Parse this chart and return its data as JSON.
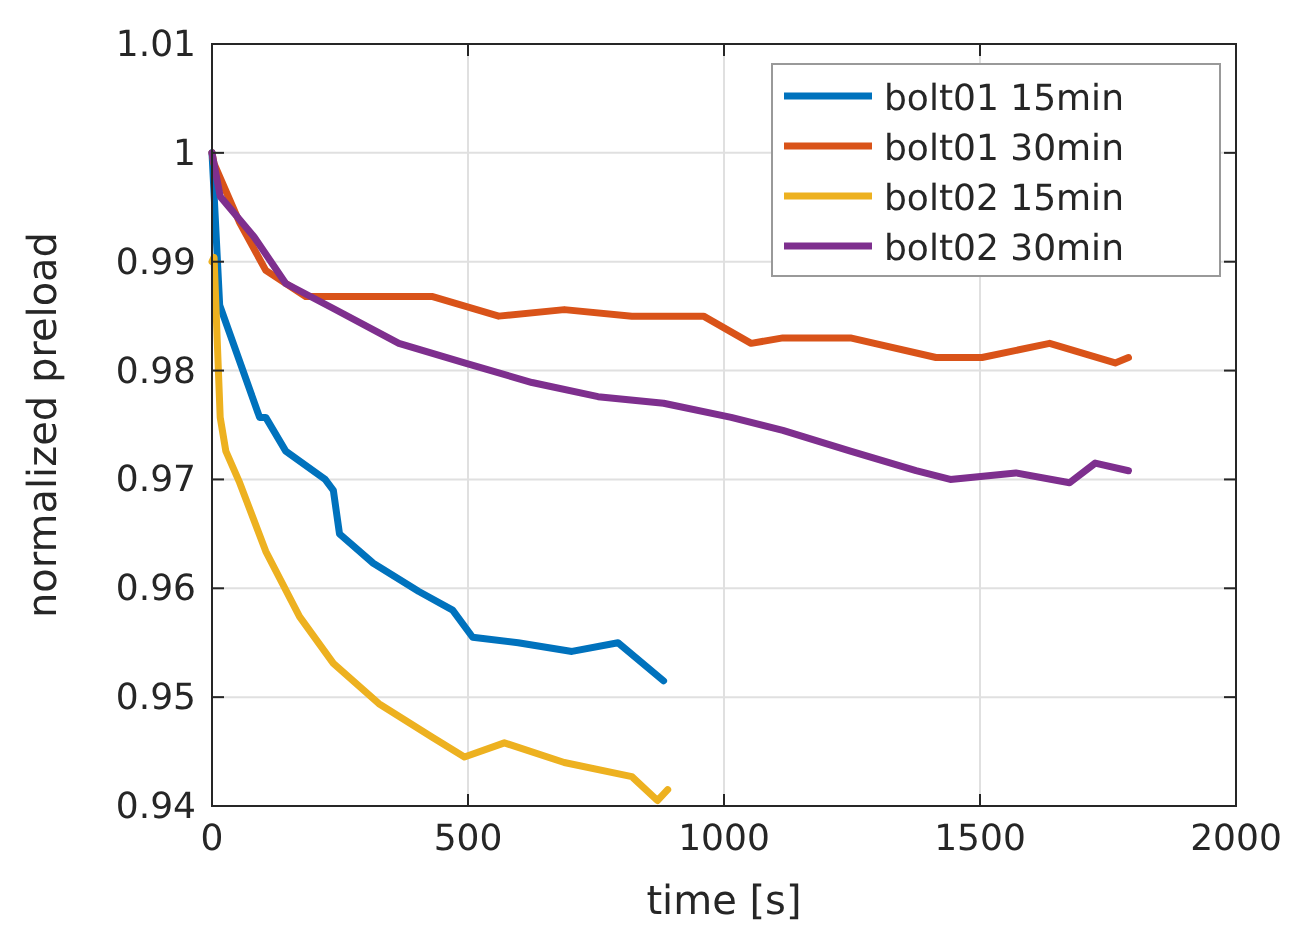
{
  "chart_data": {
    "type": "line",
    "xlabel": "time [s]",
    "ylabel": "normalized preload",
    "xlim": [
      0,
      2000
    ],
    "ylim": [
      0.94,
      1.01
    ],
    "xticks": [
      0,
      500,
      1000,
      1500,
      2000
    ],
    "yticks": [
      0.94,
      0.95,
      0.96,
      0.97,
      0.98,
      0.99,
      1,
      1.01
    ],
    "grid": true,
    "legend": "top right",
    "line_style": "solid",
    "marker": "none",
    "series": [
      {
        "name": "bolt01 15min",
        "color": "#0072bd",
        "x": [
          0,
          15,
          93,
          105,
          144,
          221,
          237,
          249,
          315,
          404,
          470,
          509,
          598,
          703,
          793,
          882
        ],
        "values": [
          1.0,
          0.986,
          0.9757,
          0.9757,
          0.9726,
          0.97,
          0.969,
          0.965,
          0.9623,
          0.9597,
          0.958,
          0.9555,
          0.955,
          0.9542,
          0.955,
          0.9515
        ]
      },
      {
        "name": "bolt01 30min",
        "color": "#d95319",
        "x": [
          0,
          4,
          54,
          105,
          183,
          299,
          431,
          560,
          688,
          820,
          960,
          1053,
          1115,
          1247,
          1414,
          1504,
          1636,
          1764,
          1790
        ],
        "values": [
          1.0,
          0.999,
          0.9936,
          0.9892,
          0.9868,
          0.9868,
          0.9868,
          0.985,
          0.9856,
          0.985,
          0.985,
          0.9825,
          0.983,
          0.983,
          0.9812,
          0.9812,
          0.9825,
          0.9807,
          0.9812
        ]
      },
      {
        "name": "bolt02 15min",
        "color": "#edb120",
        "x": [
          0,
          4,
          16,
          27,
          54,
          105,
          171,
          237,
          326,
          431,
          493,
          571,
          688,
          820,
          870,
          890
        ],
        "values": [
          0.99,
          0.9904,
          0.9757,
          0.9726,
          0.9697,
          0.9634,
          0.9574,
          0.9531,
          0.9494,
          0.9463,
          0.9445,
          0.9458,
          0.944,
          0.9427,
          0.9405,
          0.9415
        ]
      },
      {
        "name": "bolt02 30min",
        "color": "#7e2f8e",
        "x": [
          0,
          16,
          82,
          144,
          237,
          365,
          493,
          625,
          754,
          882,
          1014,
          1115,
          1247,
          1375,
          1442,
          1570,
          1675,
          1725,
          1790
        ],
        "values": [
          1.0,
          0.996,
          0.9923,
          0.988,
          0.9857,
          0.9825,
          0.9807,
          0.9789,
          0.9776,
          0.977,
          0.9757,
          0.9745,
          0.9726,
          0.9708,
          0.97,
          0.9706,
          0.9697,
          0.9715,
          0.9708
        ]
      }
    ]
  }
}
